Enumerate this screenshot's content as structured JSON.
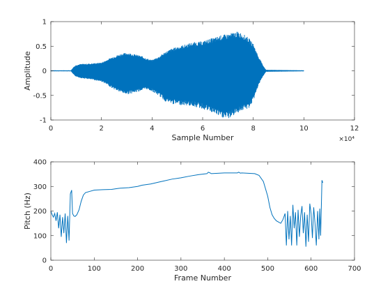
{
  "chart_data": [
    {
      "type": "line",
      "xlabel": "Sample Number",
      "ylabel": "Amplitude",
      "xlim": [
        0,
        120000
      ],
      "ylim": [
        -1,
        1
      ],
      "x_ticks": [
        0,
        2,
        4,
        6,
        8,
        10,
        12
      ],
      "x_tick_labels": [
        "0",
        "2",
        "4",
        "6",
        "8",
        "10",
        "12"
      ],
      "x_exponent_label": "×10⁴",
      "y_ticks": [
        -1,
        -0.5,
        0,
        0.5,
        1
      ],
      "y_tick_labels": [
        "-1",
        "-0.5",
        "0",
        "0.5",
        "1"
      ],
      "line_color": "#0072BD",
      "envelope": {
        "x": [
          0,
          8000,
          9000,
          10000,
          12000,
          16000,
          20000,
          22000,
          25000,
          28000,
          30000,
          33000,
          36000,
          38000,
          40000,
          43000,
          45000,
          48000,
          52000,
          56000,
          60000,
          62000,
          65000,
          67000,
          70000,
          72000,
          74000,
          76000,
          78000,
          80000,
          82000,
          84000,
          85000,
          100000
        ],
        "upper": [
          0.01,
          0.01,
          0.08,
          0.12,
          0.14,
          0.15,
          0.17,
          0.22,
          0.3,
          0.35,
          0.37,
          0.34,
          0.3,
          0.25,
          0.22,
          0.3,
          0.38,
          0.46,
          0.52,
          0.58,
          0.6,
          0.64,
          0.68,
          0.72,
          0.75,
          0.78,
          0.8,
          0.75,
          0.68,
          0.55,
          0.3,
          0.1,
          0.02,
          0.01
        ],
        "lower": [
          -0.01,
          -0.01,
          -0.08,
          -0.12,
          -0.15,
          -0.18,
          -0.22,
          -0.28,
          -0.38,
          -0.45,
          -0.48,
          -0.45,
          -0.4,
          -0.38,
          -0.42,
          -0.52,
          -0.62,
          -0.68,
          -0.7,
          -0.72,
          -0.78,
          -0.82,
          -0.88,
          -0.95,
          -0.98,
          -0.92,
          -0.85,
          -0.8,
          -0.78,
          -0.62,
          -0.3,
          -0.1,
          -0.02,
          -0.01
        ]
      }
    },
    {
      "type": "line",
      "xlabel": "Frame Number",
      "ylabel": "Pitch (Hz)",
      "xlim": [
        0,
        700
      ],
      "ylim": [
        0,
        400
      ],
      "x_ticks": [
        0,
        100,
        200,
        300,
        400,
        500,
        600,
        700
      ],
      "x_tick_labels": [
        "0",
        "100",
        "200",
        "300",
        "400",
        "500",
        "600",
        "700"
      ],
      "y_ticks": [
        0,
        100,
        200,
        300,
        400
      ],
      "y_tick_labels": [
        "0",
        "100",
        "200",
        "300",
        "400"
      ],
      "line_color": "#0072BD",
      "x": [
        0,
        3,
        6,
        9,
        12,
        15,
        18,
        21,
        24,
        27,
        30,
        33,
        36,
        39,
        42,
        45,
        48,
        50,
        53,
        56,
        60,
        65,
        70,
        75,
        80,
        90,
        100,
        120,
        140,
        155,
        160,
        180,
        200,
        210,
        230,
        250,
        260,
        280,
        300,
        320,
        340,
        360,
        363,
        367,
        370,
        400,
        430,
        433,
        437,
        440,
        470,
        480,
        490,
        500,
        505,
        510,
        515,
        520,
        525,
        530,
        535,
        540,
        543,
        546,
        549,
        552,
        555,
        558,
        561,
        564,
        567,
        570,
        573,
        576,
        579,
        582,
        585,
        588,
        591,
        594,
        597,
        600,
        603,
        606,
        609,
        612,
        615,
        618,
        620,
        622,
        625,
        627
      ],
      "y": [
        200,
        185,
        175,
        190,
        160,
        195,
        130,
        185,
        95,
        175,
        110,
        190,
        70,
        180,
        80,
        270,
        285,
        190,
        180,
        178,
        185,
        205,
        240,
        265,
        275,
        280,
        285,
        287,
        288,
        292,
        293,
        295,
        300,
        305,
        310,
        318,
        322,
        330,
        335,
        342,
        348,
        352,
        358,
        355,
        352,
        355,
        355,
        358,
        354,
        355,
        352,
        345,
        320,
        260,
        215,
        185,
        170,
        160,
        155,
        150,
        165,
        190,
        60,
        200,
        85,
        180,
        60,
        225,
        130,
        195,
        60,
        205,
        95,
        180,
        220,
        110,
        195,
        55,
        185,
        75,
        230,
        190,
        90,
        215,
        150,
        60,
        200,
        85,
        210,
        100,
        325,
        315
      ]
    }
  ]
}
